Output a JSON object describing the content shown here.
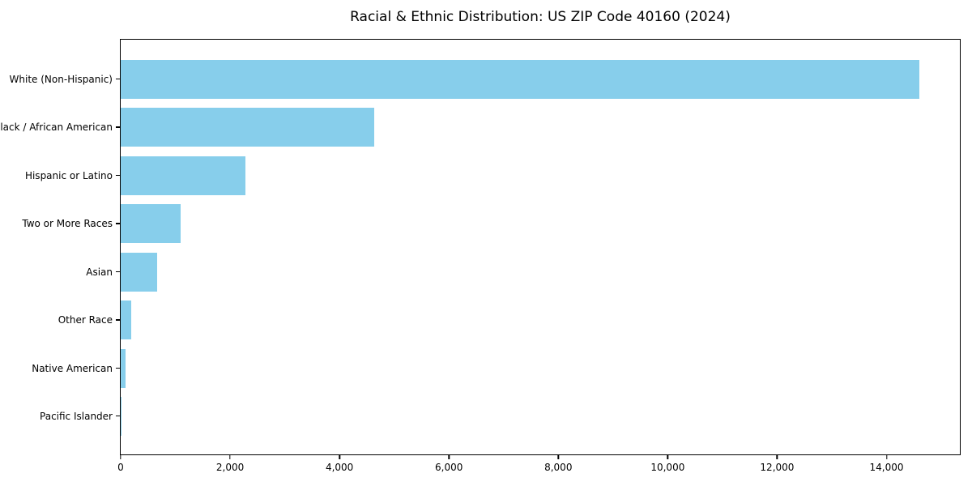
{
  "title": "Racial & Ethnic Distribution: US ZIP Code 40160 (2024)",
  "colors": {
    "background": "#ffffff",
    "bar": "#87CEEB",
    "spine": "#000000",
    "text": "#000000"
  },
  "chart_data": {
    "type": "bar",
    "orientation": "horizontal",
    "title": "Racial & Ethnic Distribution: US ZIP Code 40160 (2024)",
    "categories": [
      "White (Non-Hispanic)",
      "Black / African American",
      "Hispanic or Latino",
      "Two or More Races",
      "Asian",
      "Other Race",
      "Native American",
      "Pacific Islander"
    ],
    "values": [
      14600,
      4640,
      2280,
      1090,
      665,
      195,
      90,
      10
    ],
    "xlabel": "",
    "ylabel": "",
    "xlim": [
      0,
      15340
    ],
    "xticks": [
      0,
      2000,
      4000,
      6000,
      8000,
      10000,
      12000,
      14000
    ],
    "xtick_labels": [
      "0",
      "2,000",
      "4,000",
      "6,000",
      "8,000",
      "10,000",
      "12,000",
      "14,000"
    ],
    "grid": false,
    "legend": null,
    "bar_color": "#87CEEB"
  }
}
